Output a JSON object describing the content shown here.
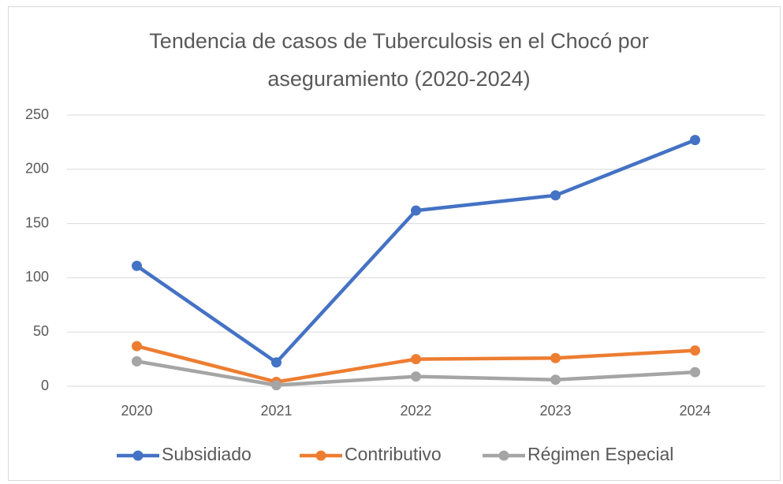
{
  "chart_data": {
    "type": "line",
    "title": "Tendencia de casos de Tuberculosis en el Chocó por aseguramiento (2020-2024)",
    "categories": [
      "2020",
      "2021",
      "2022",
      "2023",
      "2024"
    ],
    "series": [
      {
        "name": "Subsidiado",
        "color": "#4472c4",
        "values": [
          111,
          22,
          162,
          176,
          227
        ]
      },
      {
        "name": "Contributivo",
        "color": "#ed7d31",
        "values": [
          37,
          4,
          25,
          26,
          33
        ]
      },
      {
        "name": "Régimen Especial",
        "color": "#a5a5a5",
        "values": [
          23,
          1,
          9,
          6,
          13
        ]
      }
    ],
    "ylim": [
      0,
      250
    ],
    "yticks": [
      0,
      50,
      100,
      150,
      200,
      250
    ],
    "grid": true,
    "legend": "bottom"
  }
}
